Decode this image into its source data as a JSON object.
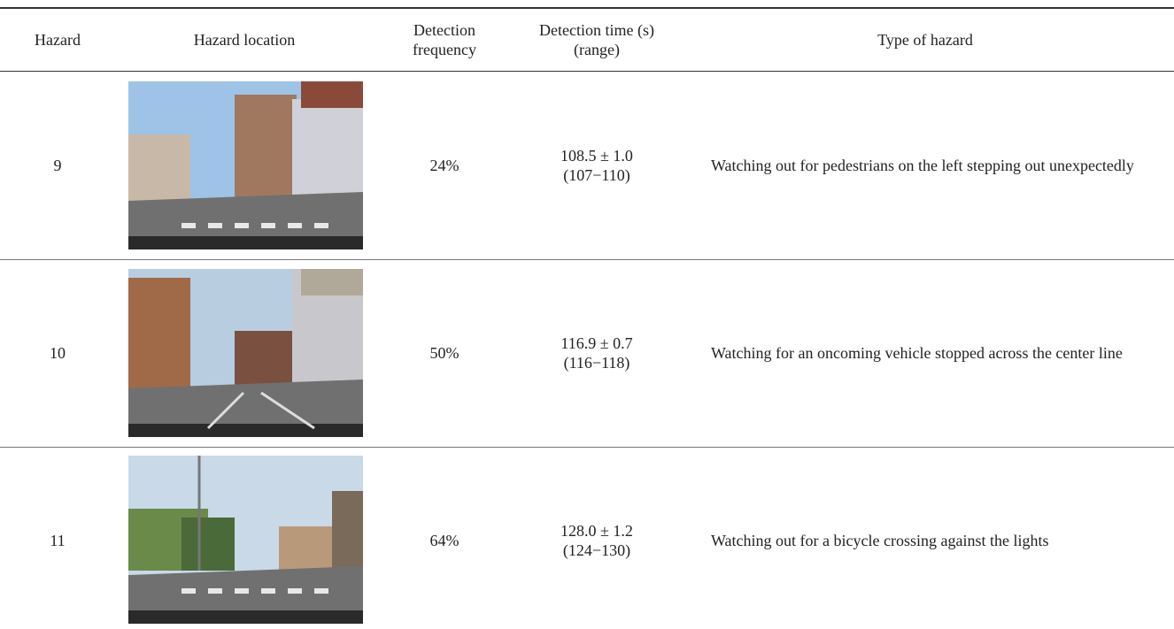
{
  "table": {
    "header": [
      "Hazard",
      "Hazard location",
      "Detection frequency",
      "Detection time (s) (range)",
      "Type of hazard"
    ],
    "rows": [
      {
        "hazard": "9",
        "frequency": "24%",
        "time": "108.5 ± 1.0",
        "range": "(107−110)",
        "type": "Watching out for pedestrians on the left stepping out unexpectedly"
      },
      {
        "hazard": "10",
        "frequency": "50%",
        "time": "116.9 ± 0.7",
        "range": "(116−118)",
        "type": "Watching for an oncoming vehicle stopped across the center line"
      },
      {
        "hazard": "11",
        "frequency": "64%",
        "time": "128.0 ± 1.2",
        "range": "(124−130)",
        "type": "Watching out for a bicycle crossing against the lights"
      }
    ]
  }
}
